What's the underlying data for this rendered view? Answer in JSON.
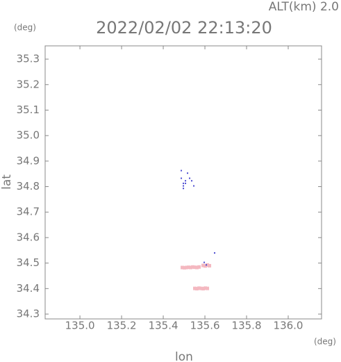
{
  "chart_data": {
    "type": "scatter",
    "title": "2022/02/02 22:13:20",
    "annotation": "ALT(km) 2.0",
    "y_unit": "(deg)",
    "x_unit": "(deg)",
    "x_label": "lon",
    "y_label": "lat",
    "xlim": [
      134.833,
      136.16
    ],
    "ylim": [
      34.281,
      35.352
    ],
    "xticks": [
      {
        "value": 135.0,
        "label": "135.0"
      },
      {
        "value": 135.2,
        "label": "135.2"
      },
      {
        "value": 135.4,
        "label": "135.4"
      },
      {
        "value": 135.6,
        "label": "135.6"
      },
      {
        "value": 135.8,
        "label": "135.8"
      },
      {
        "value": 136.0,
        "label": "136.0"
      }
    ],
    "yticks": [
      {
        "value": 34.3,
        "label": "34.3"
      },
      34.4,
      34.5,
      34.6,
      34.7,
      34.8,
      34.9,
      {
        "value": 35.0,
        "label": "35.0"
      },
      35.1,
      35.2,
      35.3
    ],
    "series": [
      {
        "color": "#f4b8c0",
        "x": [
          135.49,
          135.5,
          135.51,
          135.52,
          135.53,
          135.54,
          135.55,
          135.56,
          135.57,
          135.55,
          135.56,
          135.57,
          135.58,
          135.59,
          135.6,
          135.61,
          135.59,
          135.6,
          135.61,
          135.62
        ],
        "values": [
          34.484,
          34.483,
          34.484,
          34.485,
          34.484,
          34.486,
          34.485,
          34.484,
          34.486,
          34.402,
          34.401,
          34.403,
          34.402,
          34.401,
          34.403,
          34.402,
          34.492,
          34.49,
          34.494,
          34.491
        ]
      },
      {
        "color": "#4a4ad0",
        "x": [
          135.49,
          135.5,
          135.5,
          135.51,
          135.49,
          135.52,
          135.54,
          135.55,
          135.5,
          135.51,
          135.6,
          135.61,
          135.65,
          135.53
        ],
        "values": [
          34.86,
          34.81,
          34.8,
          34.82,
          34.83,
          34.85,
          34.82,
          34.8,
          34.79,
          34.81,
          34.5,
          34.49,
          34.537,
          34.83
        ]
      }
    ]
  }
}
